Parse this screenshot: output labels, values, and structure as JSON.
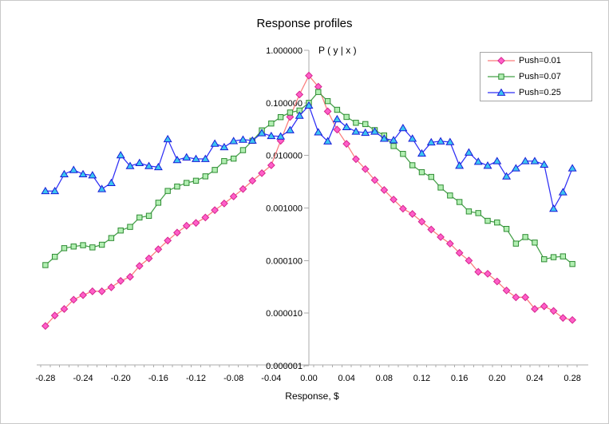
{
  "title": "Response profiles",
  "x_axis": {
    "title": "Response, $",
    "tick_labels": [
      "-0.28",
      "-0.24",
      "-0.20",
      "-0.16",
      "-0.12",
      "-0.08",
      "-0.04",
      "0.00",
      "0.04",
      "0.08",
      "0.12",
      "0.16",
      "0.20",
      "0.24",
      "0.28"
    ],
    "range": [
      -0.28,
      0.28
    ]
  },
  "y_axis": {
    "title": "P ( y | x )",
    "scale": "log",
    "tick_labels": [
      "1.000000",
      "0.100000",
      "0.010000",
      "0.001000",
      "0.000100",
      "0.000010",
      "0.000001"
    ],
    "range": [
      1e-06,
      1.0
    ]
  },
  "colors": {
    "axis": "#ababab",
    "text": "#000000",
    "legend_border": "#a6a6a6",
    "frame_border": "#c9c9c9"
  },
  "legend": {
    "position": "top-right"
  },
  "chart_data": {
    "type": "line",
    "x_start": -0.28,
    "x_step": 0.01,
    "grid": false,
    "series": [
      {
        "name": "Push=0.01",
        "marker": "diamond",
        "line_color": "#fb7b7b",
        "marker_fill": "#ff5fc8",
        "marker_stroke": "#d6258f",
        "values": [
          5.7e-06,
          9e-06,
          1.2e-05,
          1.8e-05,
          2.2e-05,
          2.6e-05,
          2.6e-05,
          3.1e-05,
          4.1e-05,
          4.9e-05,
          7.9e-05,
          0.00011,
          0.000164,
          0.00024,
          0.00034,
          0.00046,
          0.00052,
          0.00066,
          0.00091,
          0.00122,
          0.00166,
          0.0023,
          0.0033,
          0.0046,
          0.0065,
          0.019,
          0.054,
          0.144,
          0.33,
          0.203,
          0.069,
          0.031,
          0.0166,
          0.0085,
          0.0055,
          0.0034,
          0.0022,
          0.00145,
          0.00097,
          0.00077,
          0.00055,
          0.00039,
          0.00028,
          0.00021,
          0.00014,
          0.0001,
          6.1e-05,
          5.6e-05,
          4e-05,
          2.7e-05,
          2e-05,
          2e-05,
          1.2e-05,
          1.35e-05,
          1.1e-05,
          8.1e-06,
          7.4e-06
        ]
      },
      {
        "name": "Push=0.07",
        "marker": "square",
        "line_color": "#44a048",
        "marker_fill": "#b2efb2",
        "marker_stroke": "#2e8b33",
        "values": [
          8.2e-05,
          0.000118,
          0.000172,
          0.000185,
          0.000196,
          0.000178,
          0.0002,
          0.000268,
          0.000373,
          0.000437,
          0.00066,
          0.00071,
          0.00126,
          0.00211,
          0.00256,
          0.003,
          0.0033,
          0.004,
          0.0053,
          0.0078,
          0.0087,
          0.0126,
          0.019,
          0.03,
          0.0405,
          0.0535,
          0.0655,
          0.0715,
          0.1,
          0.161,
          0.108,
          0.0738,
          0.054,
          0.0418,
          0.0395,
          0.0303,
          0.024,
          0.0151,
          0.0107,
          0.0065,
          0.0048,
          0.0039,
          0.00245,
          0.00173,
          0.0013,
          0.00086,
          0.0008,
          0.00057,
          0.00053,
          0.0004,
          0.00021,
          0.00028,
          0.00022,
          0.000106,
          0.000116,
          0.00012,
          8.6e-05
        ]
      },
      {
        "name": "Push=0.25",
        "marker": "triangle",
        "line_color": "#2f2ff5",
        "marker_fill": "#3cc6f0",
        "marker_stroke": "#1a1ad8",
        "values": [
          0.0021,
          0.0021,
          0.0044,
          0.0053,
          0.0044,
          0.0042,
          0.0023,
          0.003,
          0.0101,
          0.0063,
          0.0072,
          0.0063,
          0.006,
          0.0204,
          0.0082,
          0.0092,
          0.0086,
          0.0086,
          0.0168,
          0.0144,
          0.0188,
          0.02,
          0.0192,
          0.0266,
          0.0235,
          0.023,
          0.0303,
          0.057,
          0.089,
          0.0276,
          0.0186,
          0.049,
          0.0347,
          0.0285,
          0.027,
          0.0285,
          0.0209,
          0.0195,
          0.0332,
          0.0209,
          0.0109,
          0.0178,
          0.0186,
          0.018,
          0.0064,
          0.0114,
          0.0076,
          0.0064,
          0.0078,
          0.004,
          0.0057,
          0.0078,
          0.0078,
          0.0067,
          0.00097,
          0.002,
          0.0057
        ]
      }
    ]
  }
}
